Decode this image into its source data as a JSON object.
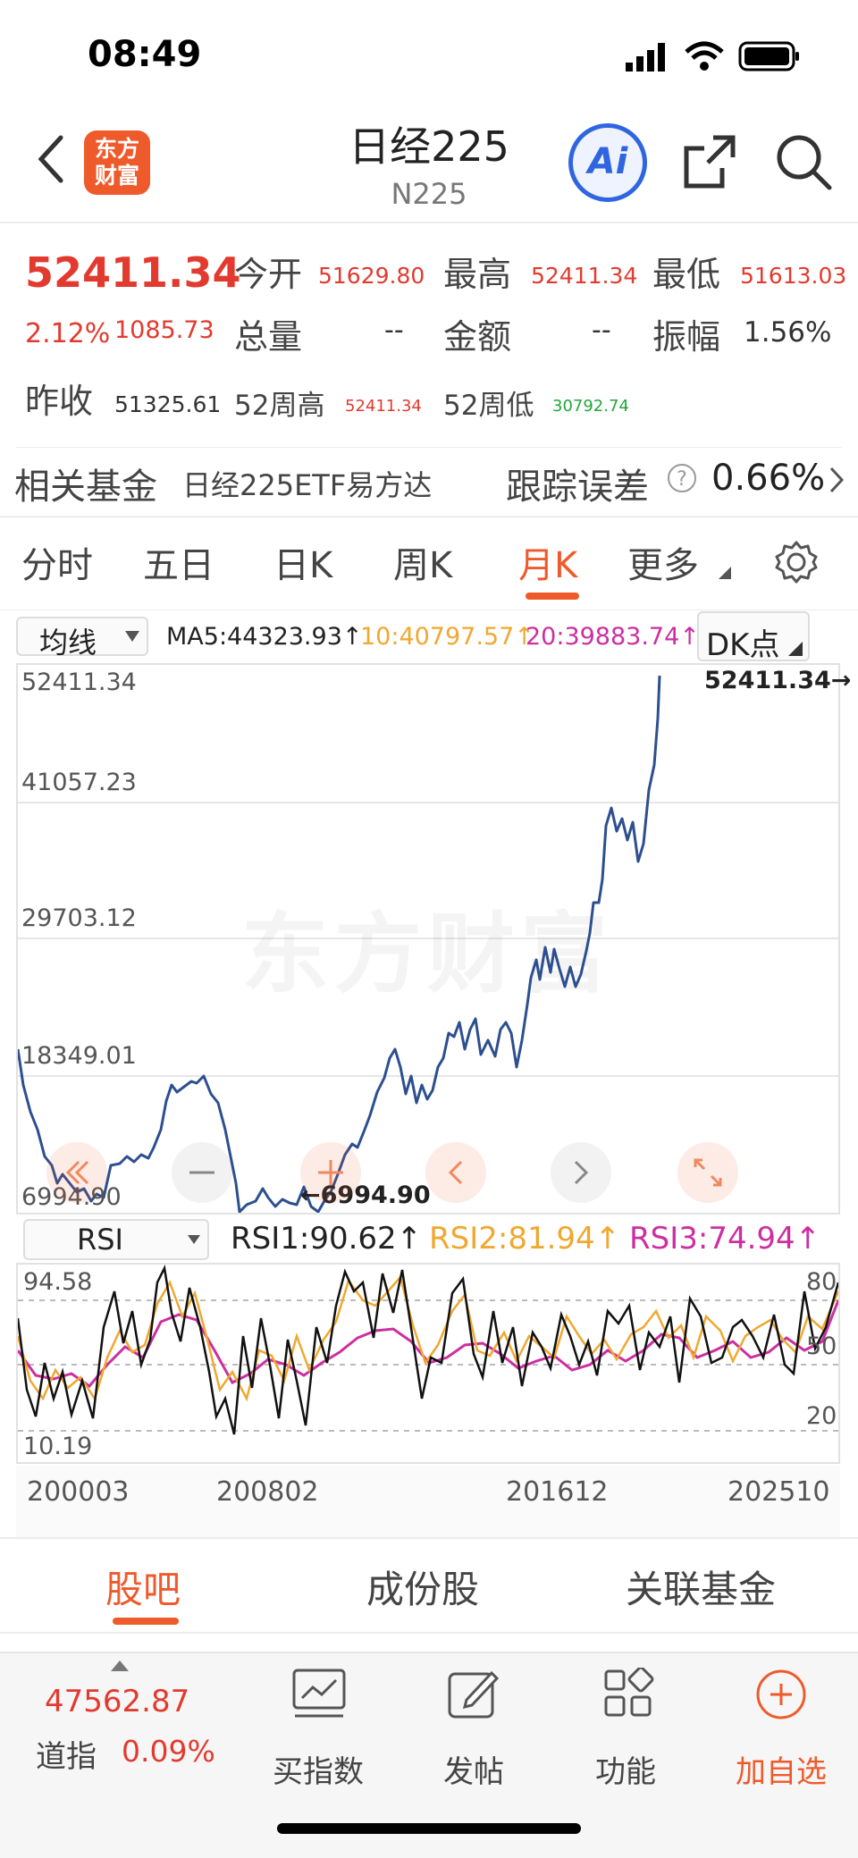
{
  "status": {
    "time": "08:49"
  },
  "header": {
    "logo_text_1": "东方",
    "logo_text_2": "财富",
    "title": "日经225",
    "subtitle": "N225",
    "ai_label": "Ai"
  },
  "quote": {
    "price": "52411.34",
    "change_pct": "2.12%",
    "change_abs": "1085.73",
    "open_label": "今开",
    "open": "51629.80",
    "high_label": "最高",
    "high": "52411.34",
    "low_label": "最低",
    "low": "51613.03",
    "volume_label": "总量",
    "volume": "--",
    "amount_label": "金额",
    "amount": "--",
    "amplitude_label": "振幅",
    "amplitude": "1.56%",
    "prev_close_label": "昨收",
    "prev_close": "51325.61",
    "wk52_high_label": "52周高",
    "wk52_high": "52411.34",
    "wk52_low_label": "52周低",
    "wk52_low": "30792.74"
  },
  "fund": {
    "label": "相关基金",
    "name": "日经225ETF易方达",
    "tracking_label": "跟踪误差",
    "tracking_value": "0.66%"
  },
  "tabs": [
    "分时",
    "五日",
    "日K",
    "周K",
    "月K",
    "更多"
  ],
  "active_tab": "月K",
  "ma_row": {
    "dropdown": "均线",
    "ma5": "MA5:44323.93↑",
    "ma10": "10:40797.57↑",
    "ma20": "20:39883.74↑",
    "dk": "DK点"
  },
  "price_chart": {
    "y_labels": [
      "52411.34",
      "41057.23",
      "29703.12",
      "18349.01",
      "6994.90"
    ],
    "max_marker": "52411.34",
    "min_marker": "6994.90",
    "watermark": "东方财富"
  },
  "rsi_row": {
    "dropdown": "RSI",
    "rsi1": "RSI1:90.62↑",
    "rsi2": "RSI2:81.94↑",
    "rsi3": "RSI3:74.94↑",
    "y_left_top": "94.58",
    "y_left_bottom": "10.19",
    "y_right": [
      "80",
      "50",
      "20"
    ]
  },
  "x_axis": [
    "200003",
    "200802",
    "201612",
    "202510"
  ],
  "bottom_tabs": [
    "股吧",
    "成份股",
    "关联基金"
  ],
  "active_bottom_tab": "股吧",
  "bottom_nav": {
    "dow_value": "47562.87",
    "dow_label": "道指",
    "dow_pct": "0.09%",
    "items": [
      "买指数",
      "发帖",
      "功能",
      "加自选"
    ]
  },
  "colors": {
    "accent": "#ef5a2b",
    "up": "#e23a2f",
    "down": "#22a63a",
    "ma5": "#222222",
    "ma10": "#f0a830",
    "ma20": "#cc2fa0",
    "price_line": "#2d4f8f"
  }
}
